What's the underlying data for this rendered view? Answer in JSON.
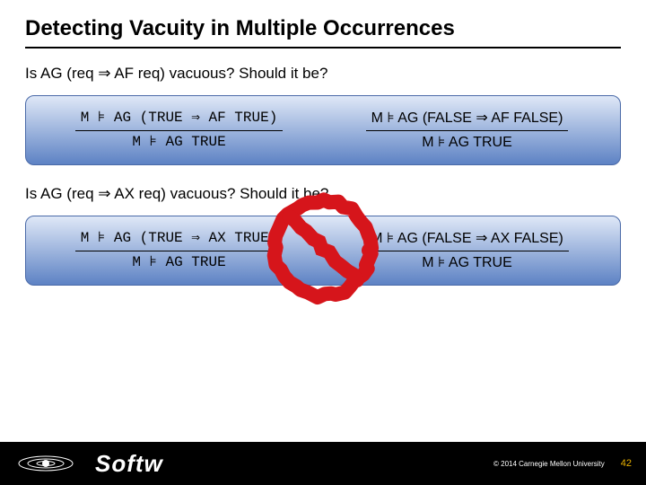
{
  "title": "Detecting Vacuity in Multiple Occurrences",
  "q1": "Is AG (req ⇒ AF req) vacuous? Should it be?",
  "q2": "Is AG (req ⇒ AX req) vacuous? Should it be?",
  "panel1": {
    "left_top": "M ⊧ AG (TRUE ⇒ AF TRUE)",
    "left_bot": "M ⊧ AG TRUE",
    "right_top": "M ⊧ AG (FALSE ⇒ AF FALSE)",
    "right_bot": "M ⊧ AG TRUE"
  },
  "panel2": {
    "left_top": "M ⊧ AG (TRUE ⇒ AX TRUE)",
    "left_bot": "M ⊧ AG TRUE",
    "right_top": "M ⊧ AG (FALSE ⇒ AX FALSE)",
    "right_bot": "M ⊧ AG TRUE"
  },
  "prohibition": {
    "size": 128,
    "stroke": "#d6151b",
    "stroke_width": 16,
    "rough_variance": 2.5
  },
  "footer": {
    "brand": "Softw",
    "copyright": "© 2014 Carnegie Mellon University",
    "page": "42"
  },
  "colors": {
    "panel_border": "#4a6aa8",
    "panel_grad_top": "#dfe8f7",
    "panel_grad_bot": "#5d82c4",
    "footer_bg": "#000000",
    "text": "#000000",
    "pagenum": "#e8b000"
  }
}
